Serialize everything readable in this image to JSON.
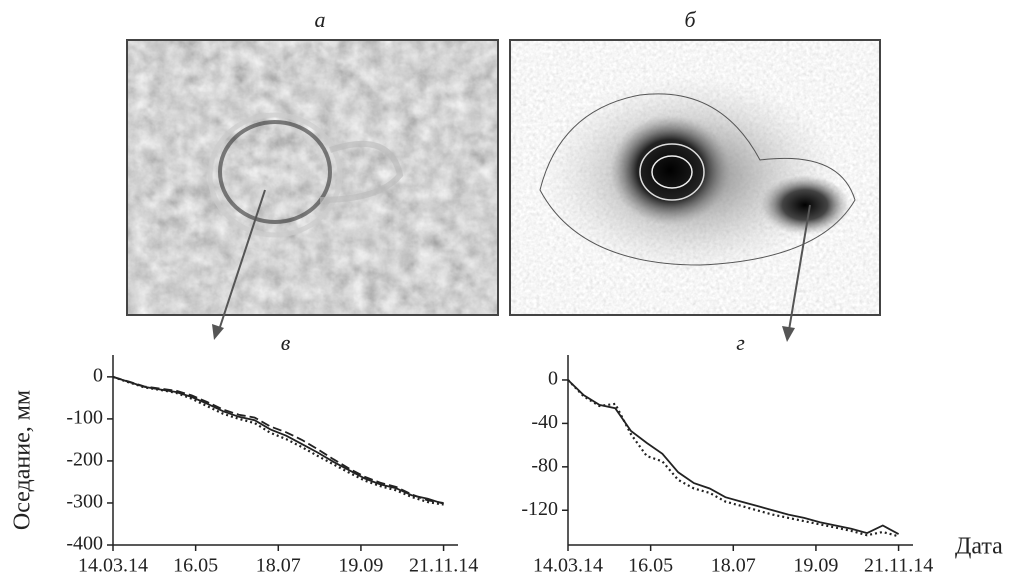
{
  "image_labels": [
    "а",
    "б"
  ],
  "chart_data": [
    {
      "type": "line",
      "title": "в",
      "ylabel": "Оседание, мм",
      "x": [
        0,
        12,
        24,
        36,
        48,
        60,
        72,
        84,
        96,
        108,
        120,
        132,
        144,
        156,
        168,
        180,
        192,
        204,
        216,
        228,
        240,
        252
      ],
      "xlim": [
        0,
        263
      ],
      "xticks": [
        {
          "value": 0,
          "label": "14.03.14"
        },
        {
          "value": 63,
          "label": "16.05"
        },
        {
          "value": 126,
          "label": "18.07"
        },
        {
          "value": 189,
          "label": "19.09"
        },
        {
          "value": 252,
          "label": "21.11.14"
        }
      ],
      "ylim": [
        -400,
        52
      ],
      "yticks": [
        0,
        -100,
        -200,
        -300,
        -400
      ],
      "series": [
        {
          "color": "#222222",
          "dash": "solid",
          "values": [
            0,
            -12,
            -24,
            -30,
            -36,
            -48,
            -64,
            -82,
            -95,
            -103,
            -125,
            -140,
            -160,
            -180,
            -202,
            -222,
            -242,
            -256,
            -265,
            -282,
            -290,
            -302
          ]
        },
        {
          "color": "#222222",
          "dash": "dashed",
          "values": [
            0,
            -11,
            -23,
            -28,
            -33,
            -44,
            -60,
            -78,
            -90,
            -97,
            -118,
            -132,
            -150,
            -172,
            -196,
            -218,
            -238,
            -252,
            -262,
            -280,
            -294,
            -300
          ]
        },
        {
          "color": "#222222",
          "dash": "dotted",
          "values": [
            0,
            -13,
            -25,
            -31,
            -38,
            -52,
            -70,
            -88,
            -100,
            -110,
            -133,
            -148,
            -167,
            -188,
            -208,
            -228,
            -247,
            -260,
            -270,
            -286,
            -298,
            -304
          ]
        }
      ]
    },
    {
      "type": "line",
      "title": "г",
      "xlabel": "Дата",
      "x": [
        0,
        12,
        24,
        36,
        48,
        60,
        72,
        84,
        96,
        108,
        120,
        132,
        144,
        156,
        168,
        180,
        192,
        204,
        216,
        228,
        240,
        252
      ],
      "xlim": [
        0,
        263
      ],
      "xticks": [
        {
          "value": 0,
          "label": "14.03.14"
        },
        {
          "value": 63,
          "label": "16.05"
        },
        {
          "value": 126,
          "label": "18.07"
        },
        {
          "value": 189,
          "label": "19.09"
        },
        {
          "value": 252,
          "label": "21.11.14"
        }
      ],
      "ylim": [
        -152,
        23
      ],
      "yticks": [
        0,
        -40,
        -80,
        -120
      ],
      "series": [
        {
          "color": "#222222",
          "dash": "solid",
          "values": [
            0,
            -14,
            -23,
            -26,
            -47,
            -58,
            -68,
            -85,
            -95,
            -100,
            -108,
            -112,
            -116,
            -120,
            -124,
            -127,
            -131,
            -134,
            -137,
            -141,
            -134,
            -142
          ]
        },
        {
          "color": "#222222",
          "dash": "dotted",
          "values": [
            0,
            -15,
            -24,
            -22,
            -50,
            -70,
            -75,
            -92,
            -100,
            -104,
            -112,
            -116,
            -120,
            -124,
            -127,
            -130,
            -133,
            -136,
            -139,
            -143,
            -140,
            -144
          ]
        }
      ]
    }
  ]
}
